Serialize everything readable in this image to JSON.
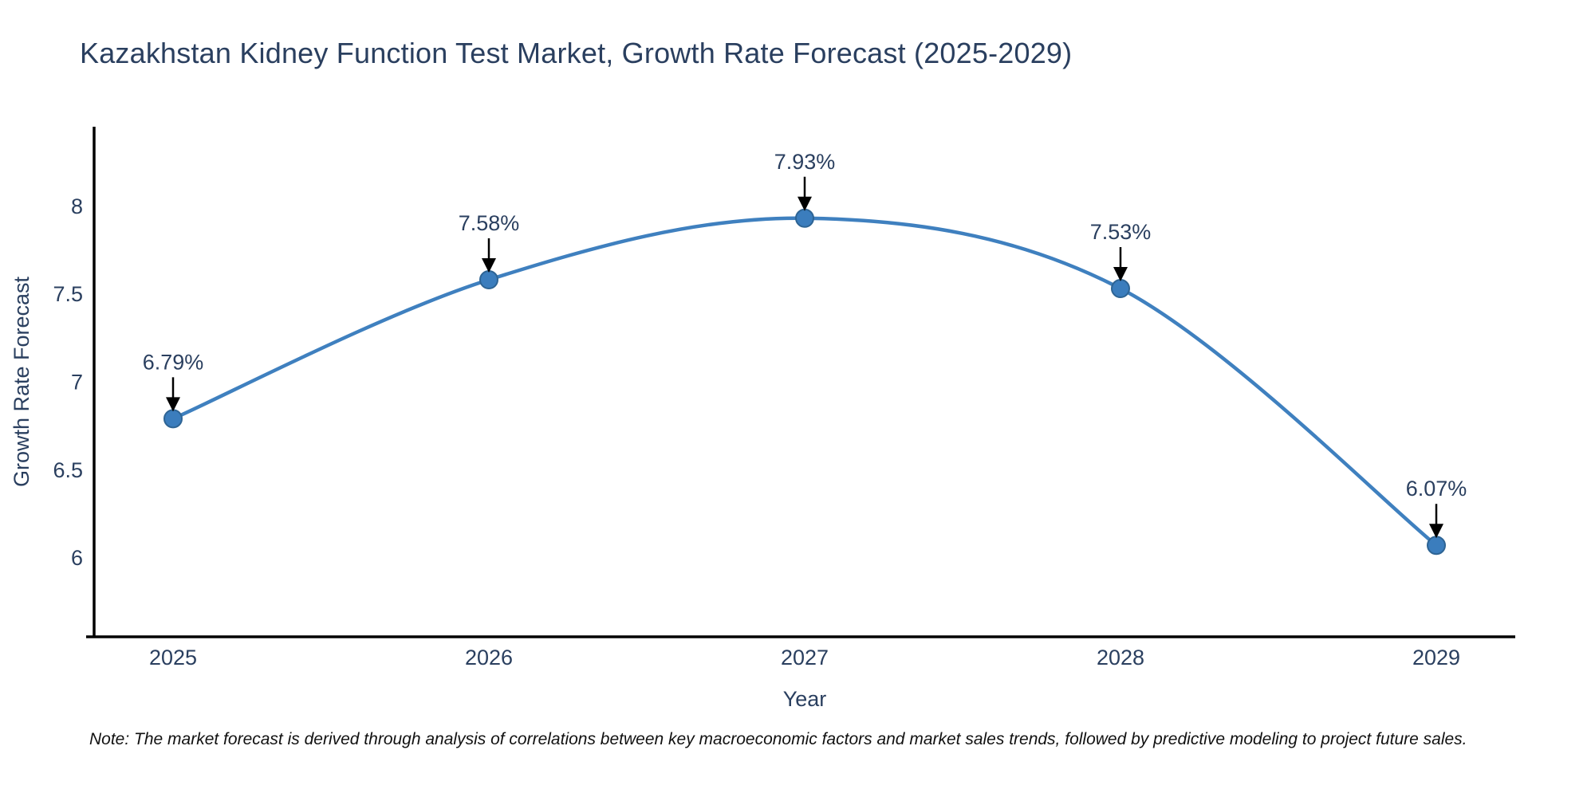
{
  "header": {
    "title": "Kazakhstan Kidney Function Test Market, Growth Rate Forecast (2025-2029)"
  },
  "chart_data": {
    "type": "line",
    "title": "Kazakhstan Kidney Function Test Market, Growth Rate Forecast (2025-2029)",
    "x": [
      2025,
      2026,
      2027,
      2028,
      2029
    ],
    "series": [
      {
        "name": "Growth Rate Forecast",
        "values": [
          6.79,
          7.58,
          7.93,
          7.53,
          6.07
        ]
      }
    ],
    "point_labels": [
      "6.79%",
      "7.58%",
      "7.93%",
      "7.53%",
      "6.07%"
    ],
    "xlabel": "Year",
    "ylabel": "Growth Rate Forecast",
    "xlim": [
      2024.75,
      2029.25
    ],
    "ylim": [
      5.55,
      8.45
    ],
    "xticks": [
      2025,
      2026,
      2027,
      2028,
      2029
    ],
    "xtick_labels": [
      "2025",
      "2026",
      "2027",
      "2028",
      "2029"
    ],
    "yticks": [
      6,
      6.5,
      7,
      7.5,
      8
    ],
    "ytick_labels": [
      "6",
      "6.5",
      "7",
      "7.5",
      "8"
    ],
    "grid": false,
    "legend": "none",
    "line_shape": "spline",
    "annotation_style": "label-above-with-down-arrow",
    "colors": {
      "line": "#3f80bf",
      "marker_fill": "#3b7dbd",
      "marker_border": "#2e6494",
      "axis_line": "#000000",
      "tick_text": "#2a3f5f",
      "axis_title_text": "#2a3f5f",
      "annotation_text": "#2a3f5f",
      "arrow": "#000000",
      "background": "#ffffff"
    }
  },
  "note": {
    "text": "Note: The market forecast is derived through analysis of correlations between key macroeconomic factors and market sales trends, followed by predictive modeling to project future sales."
  }
}
